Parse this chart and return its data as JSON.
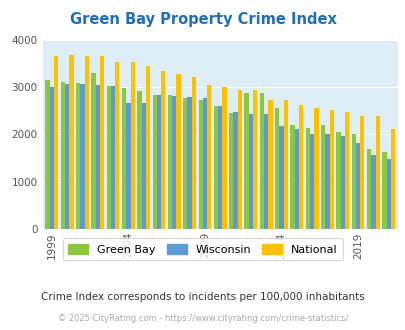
{
  "title": "Green Bay Property Crime Index",
  "years": [
    1999,
    2000,
    2001,
    2002,
    2003,
    2004,
    2005,
    2006,
    2007,
    2008,
    2009,
    2010,
    2011,
    2012,
    2013,
    2014,
    2015,
    2016,
    2017,
    2018,
    2019,
    2020,
    2021
  ],
  "green_bay": [
    3150,
    3100,
    3080,
    3300,
    3030,
    2980,
    2920,
    2840,
    2830,
    2760,
    2730,
    2590,
    2460,
    2870,
    2870,
    2560,
    2200,
    2130,
    2200,
    2060,
    2020,
    1700,
    1640
  ],
  "wisconsin": [
    3000,
    3070,
    3060,
    3050,
    3020,
    2660,
    2660,
    2830,
    2820,
    2780,
    2760,
    2590,
    2470,
    2440,
    2440,
    2180,
    2110,
    2010,
    2000,
    1960,
    1820,
    1570,
    1480
  ],
  "national": [
    3650,
    3670,
    3660,
    3660,
    3530,
    3530,
    3440,
    3340,
    3280,
    3210,
    3050,
    3000,
    2940,
    2940,
    2730,
    2730,
    2620,
    2560,
    2510,
    2480,
    2400,
    2400,
    2120
  ],
  "bar_colors": {
    "green_bay": "#8dc641",
    "wisconsin": "#5b9bd5",
    "national": "#ffc000"
  },
  "background_color": "#deeef6",
  "ylim": [
    0,
    4000
  ],
  "yticks": [
    0,
    1000,
    2000,
    3000,
    4000
  ],
  "xtick_years": [
    1999,
    2004,
    2009,
    2014,
    2019
  ],
  "legend_labels": [
    "Green Bay",
    "Wisconsin",
    "National"
  ],
  "subtitle": "Crime Index corresponds to incidents per 100,000 inhabitants",
  "footer": "© 2025 CityRating.com - https://www.cityrating.com/crime-statistics/",
  "title_color": "#1f6fb5",
  "subtitle_color": "#333333",
  "footer_color": "#aaaaaa"
}
